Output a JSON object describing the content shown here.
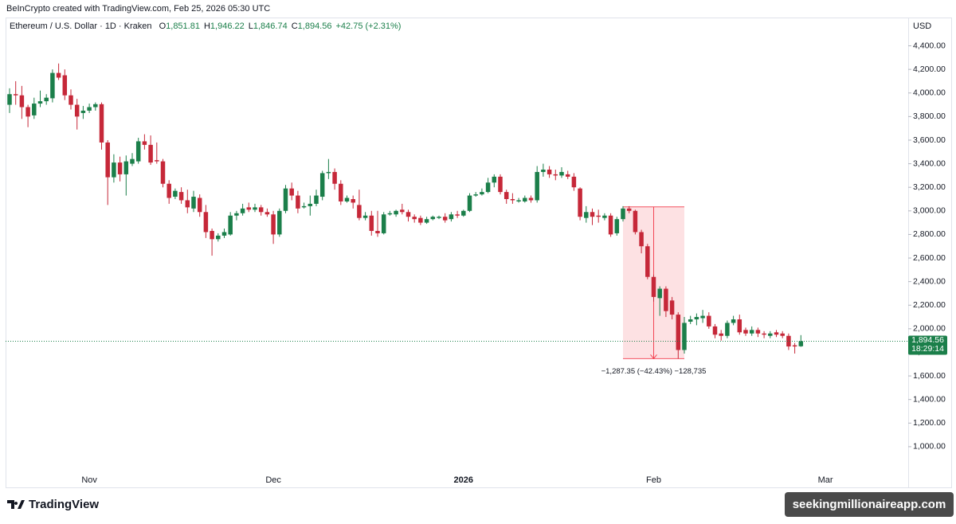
{
  "chart_data": {
    "type": "candlestick",
    "attribution": "BeInCrypto created with TradingView.com, Feb 25, 2026 05:30 UTC",
    "symbol": "Ethereum / U.S. Dollar · 1D · Kraken",
    "ohlc_legend": [
      {
        "key": "O",
        "text": "1,851.81"
      },
      {
        "key": "H",
        "text": "1,946.22"
      },
      {
        "key": "L",
        "text": "1,846.74"
      },
      {
        "key": "C",
        "text": "1,894.56"
      }
    ],
    "change": "+42.75 (+2.31%)",
    "y_unit": "USD",
    "up_color": "#1b7f4a",
    "down_color": "#c62839",
    "grid": false,
    "categories": [
      null,
      null,
      null,
      null,
      null,
      null,
      null,
      null,
      null,
      null,
      null,
      null,
      null,
      "Nov",
      null,
      null,
      null,
      null,
      null,
      null,
      null,
      null,
      null,
      null,
      null,
      null,
      null,
      null,
      null,
      null,
      null,
      null,
      null,
      null,
      null,
      null,
      null,
      null,
      null,
      null,
      null,
      null,
      null,
      "Dec",
      null,
      null,
      null,
      null,
      null,
      null,
      null,
      null,
      null,
      null,
      null,
      null,
      null,
      null,
      null,
      null,
      null,
      null,
      null,
      null,
      null,
      null,
      null,
      null,
      null,
      null,
      null,
      null,
      null,
      null,
      "2026",
      null,
      null,
      null,
      null,
      null,
      null,
      null,
      null,
      null,
      null,
      null,
      null,
      null,
      null,
      null,
      null,
      null,
      null,
      null,
      null,
      null,
      null,
      null,
      null,
      null,
      null,
      null,
      null,
      null,
      null,
      "Feb",
      null,
      null,
      null,
      null,
      null,
      null,
      null,
      null,
      null,
      null,
      null,
      null,
      null,
      null,
      null,
      null,
      null,
      null,
      null,
      null,
      null,
      null,
      null,
      null,
      null,
      null,
      null,
      "Mar",
      null,
      null,
      null,
      null,
      null,
      null,
      null,
      null,
      null,
      null,
      null,
      null,
      null
    ],
    "open": [
      3900,
      3990,
      3980,
      3880,
      3810,
      3910,
      3930,
      3955,
      4170,
      4150,
      3980,
      3900,
      3830,
      3850,
      3880,
      3905,
      3580,
      3285,
      3410,
      3310,
      3400,
      3420,
      3590,
      3560,
      3430,
      3420,
      3230,
      3120,
      3160,
      3090,
      3020,
      3110,
      2990,
      2830,
      2760,
      2790,
      2800,
      2960,
      2980,
      3030,
      3010,
      3030,
      2990,
      2970,
      2800,
      3000,
      3190,
      3130,
      3030,
      3040,
      3060,
      3120,
      3320,
      3330,
      3230,
      3080,
      3100,
      3050,
      2940,
      2960,
      2830,
      2810,
      2970,
      2970,
      3010,
      2990,
      2950,
      2940,
      2900,
      2930,
      2940,
      2950,
      2930,
      2970,
      2960,
      3000,
      3130,
      3140,
      3160,
      3240,
      3290,
      3160,
      3100,
      3080,
      3080,
      3110,
      3090,
      3330,
      3350,
      3310,
      3300,
      3310,
      3290,
      3190,
      2940,
      2990,
      2960,
      2940,
      2960,
      2810,
      2930,
      3020,
      3000,
      2820,
      2700,
      2440,
      2260,
      2340,
      2240,
      2120,
      1820,
      2060,
      2080,
      2090,
      2110,
      2020,
      1960,
      1940,
      2050,
      2080,
      1990,
      1960,
      1990,
      1960,
      1940,
      1970,
      1960,
      1940,
      1860,
      1851.81,
      null,
      null,
      null,
      null,
      null,
      null,
      null,
      null,
      null,
      null,
      null,
      null,
      null,
      null,
      null,
      null,
      null
    ],
    "high": [
      4040,
      4100,
      4060,
      3900,
      3960,
      4020,
      3990,
      4200,
      4250,
      4200,
      4030,
      3950,
      3890,
      3910,
      3920,
      3920,
      3600,
      3480,
      3460,
      3470,
      3490,
      3620,
      3650,
      3640,
      3580,
      3440,
      3260,
      3190,
      3200,
      3180,
      3170,
      3140,
      3050,
      2850,
      2810,
      2850,
      2990,
      3000,
      3060,
      3070,
      3060,
      3050,
      3020,
      3000,
      3020,
      3220,
      3240,
      3170,
      3070,
      3130,
      3180,
      3340,
      3440,
      3360,
      3260,
      3130,
      3130,
      3180,
      2990,
      3000,
      3000,
      2990,
      3000,
      3010,
      3060,
      3010,
      2970,
      2960,
      2950,
      2960,
      2960,
      2980,
      2990,
      3000,
      3010,
      3150,
      3160,
      3190,
      3280,
      3310,
      3310,
      3180,
      3150,
      3110,
      3130,
      3130,
      3380,
      3400,
      3380,
      3350,
      3370,
      3340,
      3320,
      3200,
      3040,
      3020,
      3010,
      2980,
      2980,
      2950,
      3040,
      3040,
      3010,
      2840,
      2720,
      2460,
      2360,
      2360,
      2270,
      2140,
      2100,
      2110,
      2130,
      2160,
      2140,
      2040,
      1990,
      2070,
      2110,
      2120,
      2010,
      2020,
      2010,
      1980,
      1980,
      1990,
      1980,
      1960,
      1880,
      1946.22,
      null,
      null,
      null,
      null,
      null,
      null,
      null,
      null,
      null,
      null,
      null,
      null,
      null,
      null,
      null,
      null,
      null
    ],
    "low": [
      3830,
      3900,
      3780,
      3710,
      3780,
      3880,
      3900,
      3920,
      4110,
      3940,
      3860,
      3690,
      3780,
      3830,
      3850,
      3520,
      3050,
      3240,
      3250,
      3130,
      3380,
      3400,
      3520,
      3390,
      3400,
      3200,
      3060,
      3100,
      3060,
      2980,
      2990,
      2950,
      2770,
      2620,
      2740,
      2770,
      2790,
      2920,
      2960,
      2990,
      2990,
      2960,
      2950,
      2720,
      2780,
      2980,
      3090,
      2980,
      3020,
      2960,
      3040,
      3090,
      3270,
      3180,
      3050,
      3070,
      3020,
      2920,
      2920,
      2790,
      2780,
      2800,
      2960,
      2950,
      2970,
      2910,
      2900,
      2880,
      2890,
      2920,
      2930,
      2900,
      2910,
      2940,
      2950,
      2990,
      3120,
      3130,
      3150,
      3200,
      3140,
      3060,
      3060,
      3070,
      3070,
      3070,
      3070,
      3290,
      3280,
      3260,
      3280,
      3270,
      3170,
      2920,
      2900,
      2880,
      2900,
      2920,
      2780,
      2790,
      2910,
      2980,
      2800,
      2640,
      2420,
      2230,
      2110,
      2100,
      2080,
      1746.75,
      1790,
      2040,
      2030,
      2050,
      2000,
      1920,
      1900,
      1920,
      2030,
      1950,
      1940,
      1940,
      1930,
      1920,
      1920,
      1930,
      1920,
      1820,
      1790,
      1846.74,
      null,
      null,
      null,
      null,
      null,
      null,
      null,
      null,
      null,
      null,
      null,
      null,
      null,
      null,
      null,
      null,
      null
    ],
    "close": [
      3990,
      3980,
      3880,
      3800,
      3910,
      3930,
      3960,
      4170,
      4130,
      3980,
      3900,
      3800,
      3850,
      3880,
      3905,
      3580,
      3285,
      3410,
      3310,
      3420,
      3440,
      3590,
      3560,
      3410,
      3420,
      3230,
      3110,
      3170,
      3090,
      3030,
      3120,
      2990,
      2820,
      2760,
      2790,
      2820,
      2960,
      2980,
      3020,
      3010,
      3030,
      2990,
      2970,
      2800,
      3000,
      3190,
      3130,
      3020,
      3040,
      3060,
      3130,
      3320,
      3330,
      3230,
      3080,
      3110,
      3070,
      2940,
      2960,
      2830,
      2810,
      2970,
      2980,
      3000,
      2990,
      2950,
      2930,
      2900,
      2930,
      2950,
      2950,
      2920,
      2970,
      2960,
      3000,
      3130,
      3140,
      3160,
      3240,
      3290,
      3160,
      3100,
      3090,
      3090,
      3110,
      3090,
      3330,
      3350,
      3310,
      3300,
      3330,
      3290,
      3200,
      2950,
      2990,
      2950,
      2950,
      2960,
      2800,
      2930,
      3020,
      3000,
      2820,
      2700,
      2440,
      2270,
      2340,
      2150,
      2120,
      1820,
      2050,
      2080,
      2100,
      2110,
      2020,
      1950,
      1940,
      2050,
      2080,
      1970,
      1960,
      1990,
      1960,
      1950,
      1960,
      1950,
      1940,
      1850,
      1850,
      1894.56,
      null,
      null,
      null,
      null,
      null,
      null,
      null,
      null,
      null,
      null,
      null,
      null,
      null,
      null,
      null,
      null,
      null
    ],
    "ylim": [
      790,
      4640
    ],
    "yticks": [
      {
        "value": 1000,
        "label": "1,000.00"
      },
      {
        "value": 1200,
        "label": "1,200.00"
      },
      {
        "value": 1400,
        "label": "1,400.00"
      },
      {
        "value": 1600,
        "label": "1,600.00"
      },
      {
        "value": 1800,
        "label": "1,800.00"
      },
      {
        "value": 2000,
        "label": "2,000.00"
      },
      {
        "value": 2200,
        "label": "2,200.00"
      },
      {
        "value": 2400,
        "label": "2,400.00"
      },
      {
        "value": 2600,
        "label": "2,600.00"
      },
      {
        "value": 2800,
        "label": "2,800.00"
      },
      {
        "value": 3000,
        "label": "3,000.00"
      },
      {
        "value": 3200,
        "label": "3,200.00"
      },
      {
        "value": 3400,
        "label": "3,400.00"
      },
      {
        "value": 3600,
        "label": "3,600.00"
      },
      {
        "value": 3800,
        "label": "3,800.00"
      },
      {
        "value": 4000,
        "label": "4,000.00"
      },
      {
        "value": 4200,
        "label": "4,200.00"
      },
      {
        "value": 4400,
        "label": "4,400.00"
      }
    ],
    "price_tag": {
      "value": 1894.56,
      "label": "1,894.56",
      "countdown": "18:29:14"
    },
    "measure": {
      "from": 3034.1,
      "to": 1746.75,
      "label": "−1,287.35 (−42.43%) −128,735"
    },
    "brand": "TradingView",
    "watermark": "seekingmillionaireapp.com"
  }
}
